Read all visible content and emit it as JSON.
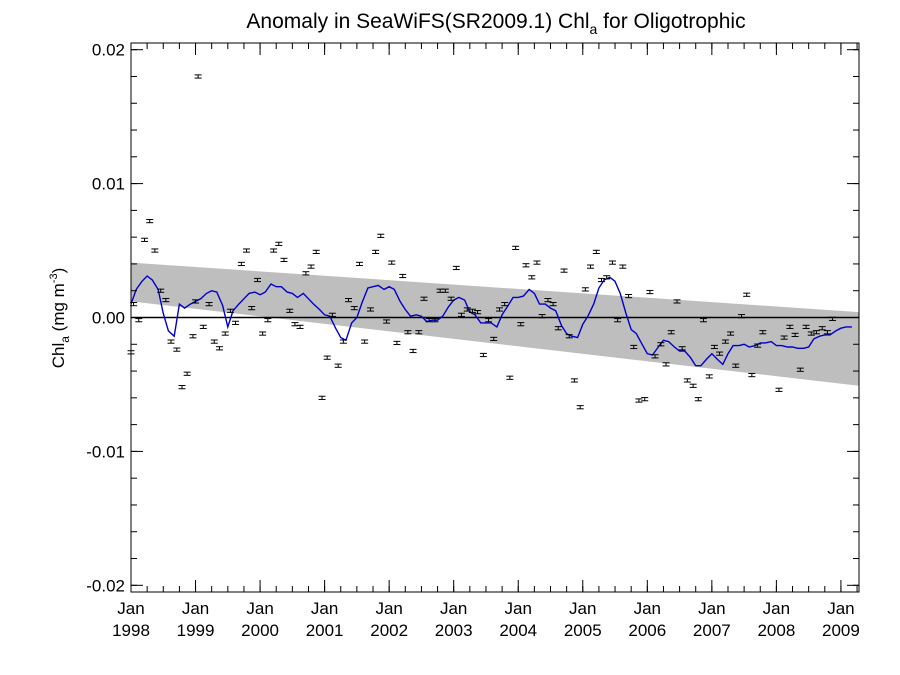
{
  "chart_data": {
    "type": "scatter",
    "title": {
      "main": "Anomaly in SeaWiFS(SR2009.1) Chl",
      "subscript": "a",
      "suffix": " for Oligotrophic"
    },
    "ylabel": {
      "main": "Chl",
      "subscript": "a",
      "mid": " (mg m",
      "superscript": "-3",
      "end": ")"
    },
    "xlim": [
      1998.0,
      2009.28
    ],
    "ylim": [
      -0.0205,
      0.0205
    ],
    "yticks": [
      -0.02,
      -0.01,
      0.0,
      0.01,
      0.02
    ],
    "ytick_labels": [
      "-0.02",
      "-0.01",
      "0.00",
      "0.01",
      "0.02"
    ],
    "xticks": [
      1998,
      1999,
      2000,
      2001,
      2002,
      2003,
      2004,
      2005,
      2006,
      2007,
      2008,
      2009
    ],
    "xtick_labels": [
      {
        "month": "Jan",
        "year": "1998"
      },
      {
        "month": "Jan",
        "year": "1999"
      },
      {
        "month": "Jan",
        "year": "2000"
      },
      {
        "month": "Jan",
        "year": "2001"
      },
      {
        "month": "Jan",
        "year": "2002"
      },
      {
        "month": "Jan",
        "year": "2003"
      },
      {
        "month": "Jan",
        "year": "2004"
      },
      {
        "month": "Jan",
        "year": "2005"
      },
      {
        "month": "Jan",
        "year": "2006"
      },
      {
        "month": "Jan",
        "year": "2007"
      },
      {
        "month": "Jan",
        "year": "2008"
      },
      {
        "month": "Jan",
        "year": "2009"
      }
    ],
    "zero_line": 0.0,
    "trend_band": {
      "x": [
        1998.0,
        2009.28
      ],
      "upper": [
        0.0041,
        0.0004
      ],
      "lower": [
        0.0012,
        -0.0051
      ],
      "color": "#bebebe"
    },
    "colors": {
      "points": "#000000",
      "smooth_line": "#0000cc",
      "band": "#bebebe",
      "axis": "#000000"
    },
    "grid": false,
    "points": [
      [
        1998.0,
        -0.0026
      ],
      [
        1998.04,
        0.001
      ],
      [
        1998.12,
        -0.0002
      ],
      [
        1998.21,
        0.0058
      ],
      [
        1998.29,
        0.0072
      ],
      [
        1998.37,
        0.005
      ],
      [
        1998.46,
        0.002
      ],
      [
        1998.54,
        0.0013
      ],
      [
        1998.62,
        -0.0018
      ],
      [
        1998.71,
        -0.0024
      ],
      [
        1998.79,
        -0.0052
      ],
      [
        1998.87,
        -0.0042
      ],
      [
        1998.96,
        -0.0014
      ],
      [
        1999.0,
        0.0012
      ],
      [
        1999.04,
        0.018
      ],
      [
        1999.12,
        -0.0007
      ],
      [
        1999.21,
        0.001
      ],
      [
        1999.29,
        -0.0018
      ],
      [
        1999.37,
        -0.0023
      ],
      [
        1999.46,
        -0.0012
      ],
      [
        1999.54,
        0.0005
      ],
      [
        1999.62,
        -0.0004
      ],
      [
        1999.71,
        0.004
      ],
      [
        1999.79,
        0.005
      ],
      [
        1999.87,
        0.0007
      ],
      [
        1999.96,
        0.0028
      ],
      [
        2000.04,
        -0.0012
      ],
      [
        2000.12,
        -0.0002
      ],
      [
        2000.21,
        0.005
      ],
      [
        2000.29,
        0.0055
      ],
      [
        2000.37,
        0.0043
      ],
      [
        2000.46,
        0.0005
      ],
      [
        2000.54,
        -0.0005
      ],
      [
        2000.62,
        -0.0007
      ],
      [
        2000.71,
        0.0033
      ],
      [
        2000.79,
        0.0038
      ],
      [
        2000.87,
        0.0049
      ],
      [
        2000.96,
        -0.006
      ],
      [
        2001.04,
        -0.003
      ],
      [
        2001.12,
        0.0002
      ],
      [
        2001.21,
        -0.0036
      ],
      [
        2001.29,
        -0.0018
      ],
      [
        2001.37,
        0.0013
      ],
      [
        2001.46,
        0.0007
      ],
      [
        2001.54,
        0.004
      ],
      [
        2001.62,
        -0.0018
      ],
      [
        2001.71,
        0.0006
      ],
      [
        2001.79,
        0.0049
      ],
      [
        2001.87,
        0.0061
      ],
      [
        2001.96,
        -0.0003
      ],
      [
        2002.04,
        0.0041
      ],
      [
        2002.12,
        -0.0019
      ],
      [
        2002.21,
        0.0031
      ],
      [
        2002.29,
        -0.0011
      ],
      [
        2002.37,
        -0.0025
      ],
      [
        2002.46,
        -0.0011
      ],
      [
        2002.54,
        0.0014
      ],
      [
        2002.62,
        -0.0002
      ],
      [
        2002.71,
        -0.0002
      ],
      [
        2002.79,
        0.002
      ],
      [
        2002.87,
        0.002
      ],
      [
        2002.96,
        0.0014
      ],
      [
        2003.04,
        0.0037
      ],
      [
        2003.12,
        0.0002
      ],
      [
        2003.21,
        0.0006
      ],
      [
        2003.29,
        0.0005
      ],
      [
        2003.37,
        0.0004
      ],
      [
        2003.46,
        -0.0028
      ],
      [
        2003.54,
        -0.0002
      ],
      [
        2003.62,
        -0.0016
      ],
      [
        2003.71,
        0.0006
      ],
      [
        2003.79,
        0.001
      ],
      [
        2003.87,
        -0.0045
      ],
      [
        2003.96,
        0.0052
      ],
      [
        2004.04,
        -0.0005
      ],
      [
        2004.12,
        0.0039
      ],
      [
        2004.21,
        0.003
      ],
      [
        2004.29,
        0.0041
      ],
      [
        2004.37,
        0.0001
      ],
      [
        2004.46,
        0.0013
      ],
      [
        2004.54,
        0.001
      ],
      [
        2004.62,
        -0.0008
      ],
      [
        2004.71,
        0.0035
      ],
      [
        2004.79,
        -0.0014
      ],
      [
        2004.87,
        -0.0047
      ],
      [
        2004.96,
        -0.0067
      ],
      [
        2005.04,
        0.0021
      ],
      [
        2005.12,
        0.0038
      ],
      [
        2005.21,
        0.0049
      ],
      [
        2005.29,
        0.0028
      ],
      [
        2005.37,
        0.003
      ],
      [
        2005.46,
        0.0041
      ],
      [
        2005.54,
        -0.0002
      ],
      [
        2005.62,
        0.0038
      ],
      [
        2005.71,
        0.0016
      ],
      [
        2005.79,
        -0.0022
      ],
      [
        2005.87,
        -0.0062
      ],
      [
        2005.96,
        -0.0061
      ],
      [
        2006.04,
        0.0019
      ],
      [
        2006.12,
        -0.0029
      ],
      [
        2006.21,
        -0.002
      ],
      [
        2006.29,
        -0.0035
      ],
      [
        2006.37,
        -0.0011
      ],
      [
        2006.46,
        0.0012
      ],
      [
        2006.54,
        -0.0023
      ],
      [
        2006.62,
        -0.0047
      ],
      [
        2006.71,
        -0.0051
      ],
      [
        2006.79,
        -0.0061
      ],
      [
        2006.87,
        -0.0002
      ],
      [
        2006.96,
        -0.0044
      ],
      [
        2007.04,
        -0.0022
      ],
      [
        2007.12,
        -0.0027
      ],
      [
        2007.21,
        -0.0018
      ],
      [
        2007.29,
        -0.0012
      ],
      [
        2007.37,
        -0.0036
      ],
      [
        2007.46,
        0.0001
      ],
      [
        2007.54,
        0.0017
      ],
      [
        2007.62,
        -0.0043
      ],
      [
        2007.71,
        -0.0021
      ],
      [
        2007.79,
        -0.0011
      ],
      [
        2008.04,
        -0.0054
      ],
      [
        2008.12,
        -0.0015
      ],
      [
        2008.21,
        -0.0007
      ],
      [
        2008.29,
        -0.0013
      ],
      [
        2008.37,
        -0.0039
      ],
      [
        2008.46,
        -0.0007
      ],
      [
        2008.54,
        -0.0012
      ],
      [
        2008.62,
        -0.0011
      ],
      [
        2008.71,
        -0.0008
      ],
      [
        2008.79,
        -0.0011
      ],
      [
        2008.87,
        -0.0001
      ]
    ],
    "smooth_line": [
      [
        1998.0,
        0.001
      ],
      [
        1998.08,
        0.0021
      ],
      [
        1998.17,
        0.0027
      ],
      [
        1998.25,
        0.0031
      ],
      [
        1998.33,
        0.0028
      ],
      [
        1998.42,
        0.0021
      ],
      [
        1998.5,
        0.0003
      ],
      [
        1998.58,
        -0.001
      ],
      [
        1998.67,
        -0.0014
      ],
      [
        1998.75,
        0.001
      ],
      [
        1998.83,
        0.0007
      ],
      [
        1998.92,
        0.001
      ],
      [
        1999.0,
        0.0012
      ],
      [
        1999.08,
        0.0014
      ],
      [
        1999.17,
        0.0018
      ],
      [
        1999.25,
        0.002
      ],
      [
        1999.33,
        0.0019
      ],
      [
        1999.42,
        0.0009
      ],
      [
        1999.5,
        -0.0007
      ],
      [
        1999.58,
        0.0005
      ],
      [
        1999.67,
        0.001
      ],
      [
        1999.75,
        0.0014
      ],
      [
        1999.83,
        0.0018
      ],
      [
        1999.92,
        0.0019
      ],
      [
        2000.0,
        0.0017
      ],
      [
        2000.08,
        0.0019
      ],
      [
        2000.17,
        0.0025
      ],
      [
        2000.25,
        0.0023
      ],
      [
        2000.33,
        0.0023
      ],
      [
        2000.42,
        0.0019
      ],
      [
        2000.5,
        0.0018
      ],
      [
        2000.58,
        0.0015
      ],
      [
        2000.67,
        0.0018
      ],
      [
        2000.75,
        0.0014
      ],
      [
        2000.83,
        0.001
      ],
      [
        2000.92,
        0.0006
      ],
      [
        2001.0,
        0.0002
      ],
      [
        2001.08,
        0.0001
      ],
      [
        2001.17,
        -0.0008
      ],
      [
        2001.25,
        -0.0015
      ],
      [
        2001.33,
        -0.0017
      ],
      [
        2001.42,
        -0.0004
      ],
      [
        2001.5,
        0.0
      ],
      [
        2001.58,
        0.0011
      ],
      [
        2001.67,
        0.0022
      ],
      [
        2001.75,
        0.0023
      ],
      [
        2001.83,
        0.0024
      ],
      [
        2001.92,
        0.0021
      ],
      [
        2002.0,
        0.0023
      ],
      [
        2002.08,
        0.0021
      ],
      [
        2002.17,
        0.0012
      ],
      [
        2002.25,
        0.0006
      ],
      [
        2002.33,
        0.0001
      ],
      [
        2002.42,
        0.0002
      ],
      [
        2002.5,
        0.0001
      ],
      [
        2002.58,
        -0.0003
      ],
      [
        2002.67,
        -0.0002
      ],
      [
        2002.75,
        -0.0002
      ],
      [
        2002.83,
        0.0001
      ],
      [
        2002.92,
        0.0008
      ],
      [
        2003.0,
        0.0013
      ],
      [
        2003.08,
        0.0015
      ],
      [
        2003.17,
        0.0013
      ],
      [
        2003.25,
        0.0004
      ],
      [
        2003.33,
        0.0002
      ],
      [
        2003.42,
        -0.0004
      ],
      [
        2003.5,
        -0.0004
      ],
      [
        2003.58,
        -0.0004
      ],
      [
        2003.67,
        -0.0007
      ],
      [
        2003.75,
        0.0002
      ],
      [
        2003.83,
        0.0008
      ],
      [
        2003.92,
        0.0015
      ],
      [
        2004.0,
        0.0015
      ],
      [
        2004.08,
        0.0016
      ],
      [
        2004.17,
        0.0021
      ],
      [
        2004.25,
        0.0018
      ],
      [
        2004.33,
        0.001
      ],
      [
        2004.42,
        0.001
      ],
      [
        2004.5,
        0.0007
      ],
      [
        2004.58,
        0.0005
      ],
      [
        2004.67,
        -0.0006
      ],
      [
        2004.75,
        -0.0012
      ],
      [
        2004.83,
        -0.0014
      ],
      [
        2004.92,
        -0.0015
      ],
      [
        2005.0,
        -0.0005
      ],
      [
        2005.08,
        0.0001
      ],
      [
        2005.17,
        0.001
      ],
      [
        2005.25,
        0.0022
      ],
      [
        2005.33,
        0.0028
      ],
      [
        2005.42,
        0.003
      ],
      [
        2005.5,
        0.0027
      ],
      [
        2005.58,
        0.0018
      ],
      [
        2005.67,
        0.0003
      ],
      [
        2005.75,
        -0.0009
      ],
      [
        2005.83,
        -0.0012
      ],
      [
        2005.92,
        -0.002
      ],
      [
        2006.0,
        -0.0027
      ],
      [
        2006.08,
        -0.0028
      ],
      [
        2006.17,
        -0.0022
      ],
      [
        2006.25,
        -0.0017
      ],
      [
        2006.33,
        -0.0018
      ],
      [
        2006.42,
        -0.0022
      ],
      [
        2006.5,
        -0.0025
      ],
      [
        2006.58,
        -0.0025
      ],
      [
        2006.67,
        -0.003
      ],
      [
        2006.75,
        -0.0036
      ],
      [
        2006.83,
        -0.0036
      ],
      [
        2006.92,
        -0.0031
      ],
      [
        2007.0,
        -0.0027
      ],
      [
        2007.08,
        -0.0031
      ],
      [
        2007.17,
        -0.0035
      ],
      [
        2007.25,
        -0.0027
      ],
      [
        2007.33,
        -0.0021
      ],
      [
        2007.42,
        -0.0021
      ],
      [
        2007.5,
        -0.002
      ],
      [
        2007.58,
        -0.0022
      ],
      [
        2007.67,
        -0.0021
      ],
      [
        2007.75,
        -0.0019
      ],
      [
        2007.83,
        -0.0019
      ],
      [
        2007.92,
        -0.0018
      ],
      [
        2008.0,
        -0.0021
      ],
      [
        2008.08,
        -0.0021
      ],
      [
        2008.17,
        -0.0022
      ],
      [
        2008.25,
        -0.0022
      ],
      [
        2008.33,
        -0.0023
      ],
      [
        2008.42,
        -0.0023
      ],
      [
        2008.5,
        -0.0022
      ],
      [
        2008.58,
        -0.0016
      ],
      [
        2008.67,
        -0.0014
      ],
      [
        2008.75,
        -0.0013
      ],
      [
        2008.83,
        -0.0013
      ],
      [
        2008.92,
        -0.001
      ],
      [
        2009.0,
        -0.0008
      ],
      [
        2009.08,
        -0.0007
      ],
      [
        2009.17,
        -0.0007
      ]
    ]
  }
}
